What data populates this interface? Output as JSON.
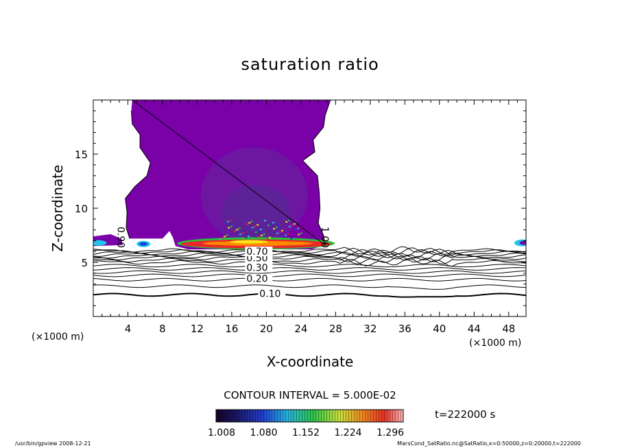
{
  "chart_data": {
    "type": "heatmap",
    "title": "saturation ratio",
    "xlabel": "X-coordinate",
    "ylabel": "Z-coordinate",
    "x_unit": "(×1000 m)",
    "y_unit": "(×1000 m)",
    "xlim": [
      0,
      50
    ],
    "ylim": [
      0,
      20
    ],
    "x_ticks": [
      4,
      8,
      12,
      16,
      20,
      24,
      28,
      32,
      36,
      40,
      44,
      48
    ],
    "y_ticks": [
      5,
      10,
      15
    ],
    "contour_interval": "CONTOUR INTERVAL = 5.000E-02",
    "time_label": "t=222000 s",
    "colorbar_ticks": [
      "1.008",
      "1.080",
      "1.152",
      "1.224",
      "1.296"
    ],
    "contour_labels": [
      {
        "x": 19.2,
        "z": 1.8,
        "text": "0.10"
      },
      {
        "x": 17.7,
        "z": 3.2,
        "text": "0.20"
      },
      {
        "x": 17.7,
        "z": 4.2,
        "text": "0.30"
      },
      {
        "x": 17.7,
        "z": 5.1,
        "text": "0.50"
      },
      {
        "x": 17.7,
        "z": 5.7,
        "text": "0.70"
      },
      {
        "x": 2.8,
        "z": 8.3,
        "text": "0.90"
      },
      {
        "x": 26.4,
        "z": 8.3,
        "text": "1.00"
      }
    ],
    "footer_left": "/usr/bin/gpview   2008-12-21",
    "footer_right": "MarsCond_SatRatio.nc@SatRatio,x=0:50000,z=0:20000,t=222000",
    "colors": {
      "plume": "#7a00a8",
      "plume_dark": "#6a1aa0",
      "plume_core": "#5a2595",
      "band_red": "#e8282a",
      "band_orange": "#ff8a00",
      "band_yellow": "#f5e61a",
      "band_green": "#27c23a",
      "band_cyan": "#1fc6e8",
      "band_blue": "#1a3cd8"
    }
  }
}
